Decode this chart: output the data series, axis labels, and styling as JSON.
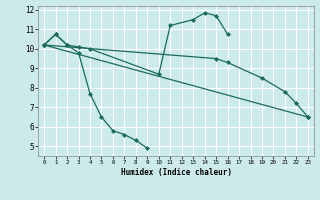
{
  "xlabel": "Humidex (Indice chaleur)",
  "bg_color": "#cceaea",
  "grid_color": "#ffffff",
  "line_color": "#1a6b5a",
  "xlim": [
    -0.5,
    23.5
  ],
  "ylim": [
    4.5,
    12.2
  ],
  "xticks": [
    0,
    1,
    2,
    3,
    4,
    5,
    6,
    7,
    8,
    9,
    10,
    11,
    12,
    13,
    14,
    15,
    16,
    17,
    18,
    19,
    20,
    21,
    22,
    23
  ],
  "yticks": [
    5,
    6,
    7,
    8,
    9,
    10,
    11,
    12
  ],
  "series_data": [
    {
      "x": [
        0,
        1,
        2,
        3,
        4,
        5,
        6,
        7,
        8,
        9
      ],
      "y": [
        10.2,
        10.75,
        10.2,
        9.8,
        7.7,
        6.5,
        5.8,
        5.6,
        5.3,
        4.9
      ]
    },
    {
      "x": [
        0,
        1,
        2,
        3,
        4,
        10,
        11,
        13,
        14,
        15,
        16
      ],
      "y": [
        10.2,
        10.75,
        10.2,
        10.1,
        10.0,
        8.7,
        11.2,
        11.5,
        11.85,
        11.7,
        10.75
      ]
    },
    {
      "x": [
        0,
        23
      ],
      "y": [
        10.2,
        6.5
      ]
    },
    {
      "x": [
        0,
        15,
        16,
        19,
        21,
        22,
        23
      ],
      "y": [
        10.2,
        9.5,
        9.3,
        8.5,
        7.8,
        7.2,
        6.5
      ]
    }
  ]
}
